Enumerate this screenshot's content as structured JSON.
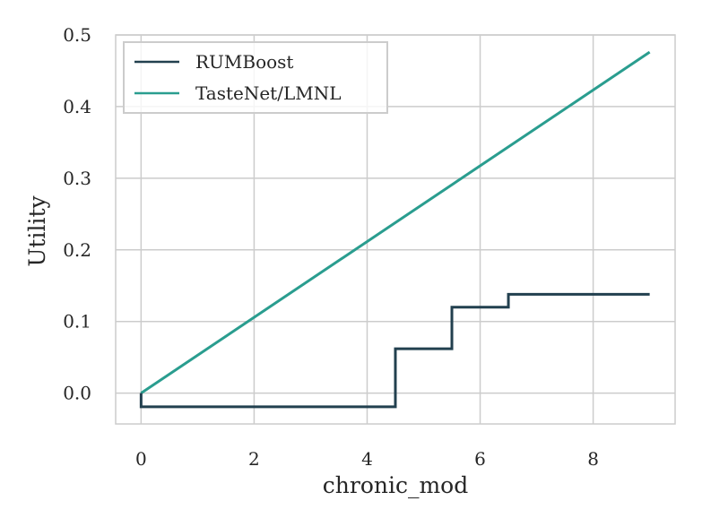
{
  "chart_data": {
    "type": "line",
    "xlabel": "chronic_mod",
    "ylabel": "Utility",
    "xlim": [
      -0.45,
      9.45
    ],
    "ylim": [
      -0.043,
      0.5
    ],
    "x_ticks": [
      0,
      2,
      4,
      6,
      8
    ],
    "x_tick_labels": [
      "0",
      "2",
      "4",
      "6",
      "8"
    ],
    "y_ticks": [
      0.0,
      0.1,
      0.2,
      0.3,
      0.4,
      0.5
    ],
    "y_tick_labels": [
      "0.0",
      "0.1",
      "0.2",
      "0.3",
      "0.4",
      "0.5"
    ],
    "grid": true,
    "legend_position": "top-left",
    "series": [
      {
        "name": "RUMBoost",
        "color": "#22404f",
        "step": true,
        "points": [
          [
            0,
            0.0
          ],
          [
            0,
            -0.019
          ],
          [
            4.5,
            -0.019
          ],
          [
            4.5,
            0.062
          ],
          [
            5.5,
            0.062
          ],
          [
            5.5,
            0.12
          ],
          [
            6.5,
            0.12
          ],
          [
            6.5,
            0.138
          ],
          [
            9,
            0.138
          ]
        ]
      },
      {
        "name": "TasteNet/LMNL",
        "color": "#2a9d8f",
        "step": false,
        "points": [
          [
            0,
            0.0
          ],
          [
            9,
            0.476
          ]
        ]
      }
    ]
  }
}
